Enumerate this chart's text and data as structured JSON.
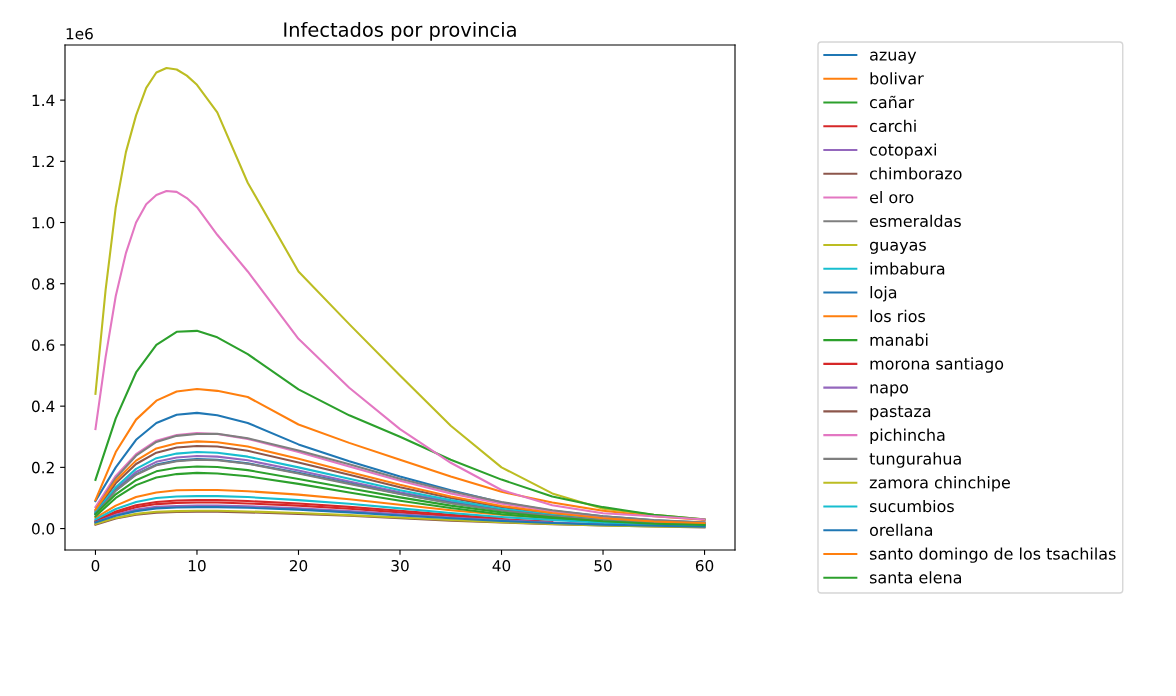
{
  "chart_data": {
    "type": "line",
    "title": "Infectados por provincia",
    "annotations": [
      "1e6"
    ],
    "xlim": [
      -3,
      63
    ],
    "xticks": [
      0,
      10,
      20,
      30,
      40,
      50,
      60
    ],
    "ylim": [
      -0.07,
      1.58
    ],
    "yticks": [
      {
        "value": 0,
        "label": "0.0"
      },
      0.2,
      0.4,
      0.6,
      0.8,
      {
        "value": 1,
        "label": "1.0"
      },
      1.2,
      1.4
    ],
    "grid": false,
    "legend": "right",
    "marker": "none",
    "line_style": "solid",
    "series": [
      {
        "name": "azuay",
        "color": "#1f77b4",
        "x": [
          0,
          2,
          4,
          6,
          8,
          10,
          12,
          15,
          20,
          25,
          30,
          35,
          40,
          45,
          50,
          55,
          60
        ],
        "values": [
          0.09,
          0.2,
          0.29,
          0.345,
          0.372,
          0.378,
          0.37,
          0.345,
          0.275,
          0.22,
          0.17,
          0.125,
          0.085,
          0.058,
          0.04,
          0.027,
          0.02
        ]
      },
      {
        "name": "bolivar",
        "color": "#ff7f0e",
        "x": [
          0,
          2,
          4,
          6,
          8,
          10,
          12,
          15,
          20,
          25,
          30,
          35,
          40,
          45,
          50,
          55,
          60
        ],
        "values": [
          0.035,
          0.075,
          0.103,
          0.118,
          0.125,
          0.126,
          0.126,
          0.122,
          0.111,
          0.096,
          0.078,
          0.06,
          0.045,
          0.033,
          0.023,
          0.016,
          0.011
        ]
      },
      {
        "name": "cañar",
        "color": "#2ca02c",
        "x": [
          0,
          2,
          4,
          6,
          8,
          10,
          12,
          15,
          20,
          25,
          30,
          35,
          40,
          45,
          50,
          55,
          60
        ],
        "values": [
          0.04,
          0.1,
          0.142,
          0.167,
          0.178,
          0.182,
          0.18,
          0.171,
          0.146,
          0.118,
          0.091,
          0.067,
          0.047,
          0.033,
          0.022,
          0.015,
          0.011
        ]
      },
      {
        "name": "carchi",
        "color": "#d62728",
        "x": [
          0,
          2,
          4,
          6,
          8,
          10,
          12,
          15,
          20,
          25,
          30,
          35,
          40
        ],
        "values": [
          0.025,
          0.056,
          0.076,
          0.087,
          0.092,
          0.093,
          0.093,
          0.09,
          0.082,
          0.071,
          0.058,
          0.045,
          0.033
        ]
      },
      {
        "name": "cotopaxi",
        "color": "#9467bd",
        "x": [
          0,
          2,
          4,
          6,
          8,
          10,
          12,
          15,
          20,
          25,
          30,
          35,
          40,
          45,
          50,
          55,
          60
        ],
        "values": [
          0.05,
          0.13,
          0.185,
          0.218,
          0.232,
          0.237,
          0.235,
          0.223,
          0.19,
          0.154,
          0.119,
          0.088,
          0.062,
          0.043,
          0.028,
          0.019,
          0.014
        ]
      },
      {
        "name": "chimborazo",
        "color": "#8c564b",
        "x": [
          0,
          2,
          4,
          6,
          8,
          10,
          12,
          15,
          20,
          25,
          30,
          35,
          40,
          45,
          50,
          55,
          60
        ],
        "values": [
          0.055,
          0.148,
          0.211,
          0.248,
          0.265,
          0.27,
          0.268,
          0.254,
          0.216,
          0.176,
          0.135,
          0.1,
          0.07,
          0.049,
          0.032,
          0.022,
          0.016
        ]
      },
      {
        "name": "el oro",
        "color": "#e377c2",
        "x": [
          0,
          2,
          4,
          6,
          8,
          10,
          12,
          15,
          20,
          25,
          30,
          35,
          40,
          45,
          50,
          55,
          60
        ],
        "values": [
          0.07,
          0.172,
          0.243,
          0.287,
          0.306,
          0.312,
          0.309,
          0.293,
          0.25,
          0.203,
          0.156,
          0.115,
          0.081,
          0.056,
          0.037,
          0.025,
          0.019
        ]
      },
      {
        "name": "esmeraldas",
        "color": "#7f7f7f",
        "x": [
          0,
          2,
          4,
          6,
          8,
          10,
          12,
          15,
          20,
          25,
          30,
          35,
          40,
          45,
          50,
          55,
          60
        ],
        "values": [
          0.06,
          0.165,
          0.238,
          0.283,
          0.303,
          0.309,
          0.31,
          0.295,
          0.255,
          0.21,
          0.163,
          0.122,
          0.087,
          0.06,
          0.04,
          0.028,
          0.02
        ]
      },
      {
        "name": "guayas",
        "color": "#bcbd22",
        "x": [
          0,
          1,
          2,
          3,
          4,
          5,
          6,
          7,
          8,
          9,
          10,
          12,
          15,
          20,
          25,
          30,
          35,
          40,
          45,
          50,
          55,
          60
        ],
        "values": [
          0.44,
          0.78,
          1.05,
          1.23,
          1.35,
          1.44,
          1.49,
          1.505,
          1.5,
          1.48,
          1.45,
          1.36,
          1.13,
          0.84,
          0.668,
          0.5,
          0.336,
          0.2,
          0.115,
          0.065,
          0.045,
          0.03
        ]
      },
      {
        "name": "imbabura",
        "color": "#17becf",
        "x": [
          0,
          2,
          4,
          6,
          8,
          10,
          12,
          15,
          20,
          25,
          30,
          35,
          40,
          45,
          50,
          55,
          60
        ],
        "values": [
          0.052,
          0.135,
          0.195,
          0.23,
          0.245,
          0.25,
          0.248,
          0.235,
          0.2,
          0.163,
          0.125,
          0.093,
          0.065,
          0.045,
          0.03,
          0.02,
          0.015
        ]
      },
      {
        "name": "loja",
        "color": "#1f77b4",
        "x": [
          0,
          2,
          4,
          6,
          8,
          10,
          12,
          15,
          20,
          25,
          30,
          35,
          40,
          45,
          50,
          55,
          60
        ],
        "values": [
          0.048,
          0.125,
          0.177,
          0.209,
          0.222,
          0.227,
          0.225,
          0.213,
          0.182,
          0.148,
          0.114,
          0.084,
          0.059,
          0.041,
          0.027,
          0.018,
          0.014
        ]
      },
      {
        "name": "los rios",
        "color": "#ff7f0e",
        "x": [
          0,
          2,
          4,
          6,
          8,
          10,
          12,
          15,
          20,
          25,
          30,
          35,
          40,
          45,
          50,
          55,
          60
        ],
        "values": [
          0.093,
          0.25,
          0.356,
          0.418,
          0.448,
          0.456,
          0.45,
          0.43,
          0.34,
          0.28,
          0.225,
          0.17,
          0.12,
          0.085,
          0.058,
          0.04,
          0.028
        ]
      },
      {
        "name": "manabi",
        "color": "#2ca02c",
        "x": [
          0,
          2,
          4,
          6,
          8,
          10,
          12,
          15,
          20,
          25,
          30,
          35,
          40,
          45,
          50,
          55,
          60
        ],
        "values": [
          0.159,
          0.36,
          0.51,
          0.6,
          0.643,
          0.646,
          0.625,
          0.57,
          0.455,
          0.37,
          0.3,
          0.225,
          0.16,
          0.105,
          0.07,
          0.045,
          0.03
        ]
      },
      {
        "name": "morona santiago",
        "color": "#d62728",
        "x": [
          0,
          2,
          4,
          6,
          8,
          10,
          12,
          15,
          20,
          25,
          30,
          35,
          40,
          45
        ],
        "values": [
          0.022,
          0.051,
          0.07,
          0.08,
          0.084,
          0.085,
          0.085,
          0.082,
          0.075,
          0.065,
          0.053,
          0.041,
          0.031,
          0.022
        ]
      },
      {
        "name": "napo",
        "color": "#9467bd",
        "x": [
          0,
          2,
          4,
          6,
          8,
          10,
          12,
          15,
          20,
          25,
          30,
          35,
          40,
          45,
          50
        ],
        "values": [
          0.02,
          0.045,
          0.062,
          0.071,
          0.074,
          0.075,
          0.075,
          0.073,
          0.066,
          0.057,
          0.047,
          0.036,
          0.027,
          0.02,
          0.014
        ]
      },
      {
        "name": "pastaza",
        "color": "#8c564b",
        "x": [
          0,
          2,
          4,
          6,
          8,
          10,
          12,
          15,
          20,
          25,
          30,
          35,
          40,
          45,
          50,
          55,
          60
        ],
        "values": [
          0.013,
          0.033,
          0.045,
          0.052,
          0.054,
          0.055,
          0.055,
          0.053,
          0.048,
          0.042,
          0.034,
          0.026,
          0.02,
          0.014,
          0.01,
          0.007,
          0.004
        ]
      },
      {
        "name": "pichincha",
        "color": "#e377c2",
        "x": [
          0,
          1,
          2,
          3,
          4,
          5,
          6,
          7,
          8,
          9,
          10,
          12,
          15,
          20,
          25,
          30,
          35,
          40,
          45,
          50,
          55,
          60
        ],
        "values": [
          0.325,
          0.56,
          0.76,
          0.9,
          1.0,
          1.06,
          1.09,
          1.103,
          1.1,
          1.08,
          1.05,
          0.96,
          0.84,
          0.62,
          0.46,
          0.325,
          0.215,
          0.126,
          0.076,
          0.05,
          0.04,
          0.03
        ]
      },
      {
        "name": "tungurahua",
        "color": "#7f7f7f",
        "x": [
          0,
          2,
          4,
          6,
          8,
          10,
          12,
          15,
          20,
          25,
          30,
          35,
          40,
          45,
          50,
          55,
          60
        ],
        "values": [
          0.046,
          0.124,
          0.176,
          0.207,
          0.22,
          0.225,
          0.223,
          0.212,
          0.18,
          0.146,
          0.113,
          0.083,
          0.059,
          0.041,
          0.027,
          0.018,
          0.013
        ]
      },
      {
        "name": "zamora chinchipe",
        "color": "#bcbd22",
        "x": [
          0,
          2,
          4,
          6,
          8,
          10,
          12,
          15,
          20,
          25,
          30,
          35,
          40,
          45,
          50,
          55,
          60
        ],
        "values": [
          0.015,
          0.035,
          0.048,
          0.055,
          0.057,
          0.058,
          0.058,
          0.056,
          0.051,
          0.044,
          0.036,
          0.028,
          0.021,
          0.015,
          0.01,
          0.007,
          0.005
        ]
      },
      {
        "name": "sucumbios",
        "color": "#17becf",
        "x": [
          0,
          2,
          4,
          6,
          8,
          10,
          12,
          15,
          20,
          25,
          30,
          35,
          40,
          45,
          50,
          55,
          60
        ],
        "values": [
          0.03,
          0.064,
          0.087,
          0.1,
          0.105,
          0.106,
          0.106,
          0.103,
          0.093,
          0.081,
          0.066,
          0.051,
          0.038,
          0.028,
          0.019,
          0.014,
          0.01
        ]
      },
      {
        "name": "orellana",
        "color": "#1f77b4",
        "x": [
          0,
          2,
          4,
          6,
          8,
          10,
          12,
          15,
          20,
          25,
          30,
          35,
          40,
          45,
          50,
          55,
          60
        ],
        "values": [
          0.02,
          0.042,
          0.057,
          0.066,
          0.069,
          0.07,
          0.07,
          0.068,
          0.062,
          0.053,
          0.043,
          0.034,
          0.025,
          0.018,
          0.013,
          0.009,
          0.006
        ]
      },
      {
        "name": "santo domingo de los tsachilas",
        "color": "#ff7f0e",
        "x": [
          0,
          2,
          4,
          6,
          8,
          10,
          12,
          15,
          20,
          25,
          30,
          35,
          40,
          45,
          50,
          55,
          60
        ],
        "values": [
          0.062,
          0.157,
          0.222,
          0.262,
          0.279,
          0.285,
          0.282,
          0.268,
          0.228,
          0.185,
          0.143,
          0.105,
          0.074,
          0.051,
          0.034,
          0.023,
          0.017
        ]
      },
      {
        "name": "santa elena",
        "color": "#2ca02c",
        "x": [
          0,
          2,
          4,
          6,
          8,
          10,
          12,
          15,
          20,
          25,
          30,
          35,
          40,
          45,
          50,
          55,
          60
        ],
        "values": [
          0.047,
          0.112,
          0.158,
          0.187,
          0.199,
          0.203,
          0.201,
          0.191,
          0.162,
          0.132,
          0.102,
          0.075,
          0.053,
          0.037,
          0.024,
          0.016,
          0.012
        ]
      }
    ]
  }
}
